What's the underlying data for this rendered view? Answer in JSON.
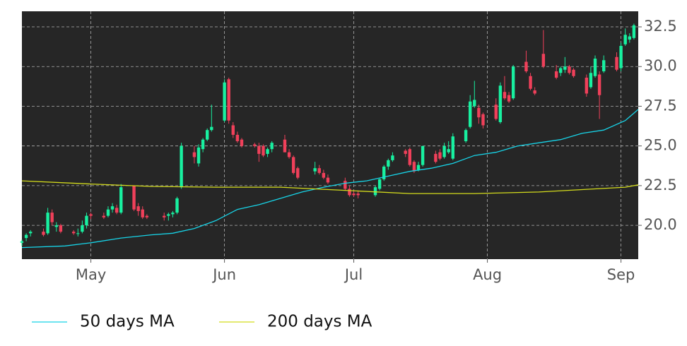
{
  "chart_data": {
    "type": "candlestick",
    "up_color": "#18f0a0",
    "down_color": "#f0405a",
    "grid": true,
    "xlim": [
      105,
      248
    ],
    "ylim": [
      17.87,
      33.48
    ],
    "xticks": [
      {
        "value": 121,
        "label": "May"
      },
      {
        "value": 152,
        "label": "Jun"
      },
      {
        "value": 182,
        "label": "Jul"
      },
      {
        "value": 213,
        "label": "Aug"
      },
      {
        "value": 244,
        "label": "Sep"
      }
    ],
    "yticks": [
      {
        "value": 20,
        "label": "20.0"
      },
      {
        "value": 22.5,
        "label": "22.5"
      },
      {
        "value": 25,
        "label": "25.0"
      },
      {
        "value": 27.5,
        "label": "27.5"
      },
      {
        "value": 30,
        "label": "30.0"
      },
      {
        "value": 32.5,
        "label": "32.5"
      }
    ],
    "x": [
      105,
      106,
      107,
      110,
      111,
      112,
      113,
      114,
      117,
      118,
      119,
      120,
      121,
      124,
      125,
      126,
      127,
      128,
      131,
      132,
      133,
      134,
      138,
      139,
      140,
      141,
      142,
      145,
      146,
      147,
      148,
      149,
      152,
      153,
      154,
      155,
      156,
      159,
      160,
      161,
      162,
      163,
      166,
      167,
      168,
      169,
      173,
      174,
      175,
      176,
      180,
      181,
      182,
      183,
      187,
      188,
      189,
      190,
      191,
      194,
      195,
      196,
      197,
      198,
      201,
      202,
      203,
      204,
      205,
      208,
      209,
      210,
      211,
      212,
      215,
      216,
      217,
      218,
      219,
      222,
      223,
      224,
      226,
      229,
      230,
      231,
      232,
      233,
      236,
      237,
      238,
      239,
      240,
      243,
      244,
      245,
      246,
      247
    ],
    "open": [
      18.9,
      19.2,
      19.5,
      19.6,
      19.5,
      20.8,
      19.9,
      20.0,
      19.6,
      19.5,
      19.6,
      20.0,
      20.7,
      20.6,
      20.6,
      21.0,
      21.1,
      20.8,
      22.5,
      21.2,
      21.0,
      20.6,
      20.6,
      20.6,
      20.7,
      20.8,
      22.4,
      24.6,
      23.9,
      24.8,
      25.4,
      26.0,
      26.6,
      29.2,
      26.3,
      25.7,
      25.4,
      25.1,
      25.0,
      25.0,
      24.5,
      24.8,
      25.4,
      24.6,
      24.3,
      23.6,
      23.4,
      23.6,
      23.3,
      23.0,
      22.8,
      22.3,
      22.0,
      22.0,
      21.9,
      22.3,
      22.9,
      23.7,
      24.1,
      24.7,
      24.8,
      24.0,
      23.5,
      23.8,
      24.5,
      24.6,
      24.3,
      24.6,
      24.2,
      25.3,
      26.2,
      27.5,
      27.4,
      27.0,
      27.6,
      26.5,
      28.4,
      28.2,
      28.0,
      30.3,
      29.4,
      28.5,
      30.8,
      29.7,
      29.6,
      29.8,
      30.0,
      29.8,
      29.3,
      28.7,
      29.4,
      29.5,
      29.7,
      30.6,
      29.9,
      31.4,
      31.7,
      31.8
    ],
    "high": [
      19.1,
      19.5,
      19.7,
      19.8,
      21.1,
      21.0,
      20.2,
      20.1,
      19.7,
      19.8,
      20.3,
      20.8,
      20.8,
      20.8,
      21.2,
      21.4,
      21.3,
      22.6,
      22.5,
      21.4,
      21.2,
      20.7,
      20.8,
      20.8,
      20.9,
      21.8,
      25.2,
      25.0,
      25.1,
      25.5,
      26.1,
      27.6,
      29.2,
      29.3,
      26.5,
      25.9,
      25.5,
      25.2,
      25.2,
      25.1,
      24.9,
      25.3,
      25.7,
      24.8,
      24.4,
      23.7,
      24.0,
      23.8,
      23.5,
      23.2,
      23.0,
      22.5,
      22.2,
      22.2,
      22.5,
      23.0,
      23.8,
      24.2,
      24.6,
      24.8,
      24.9,
      24.1,
      24.0,
      25.0,
      24.7,
      24.8,
      25.2,
      25.3,
      25.8,
      26.1,
      28.2,
      29.1,
      27.6,
      27.1,
      28.0,
      29.0,
      29.4,
      28.4,
      30.1,
      31.0,
      29.6,
      28.7,
      32.3,
      30.1,
      30.0,
      30.6,
      30.1,
      29.9,
      29.5,
      30.0,
      30.7,
      29.7,
      30.7,
      30.9,
      31.5,
      32.4,
      32.1,
      32.7
    ],
    "low": [
      18.7,
      19.0,
      19.3,
      19.3,
      19.4,
      20.0,
      19.6,
      19.5,
      19.4,
      19.3,
      19.5,
      19.8,
      20.4,
      20.4,
      20.5,
      20.8,
      20.7,
      20.7,
      20.9,
      20.6,
      20.4,
      20.4,
      20.3,
      20.3,
      20.5,
      20.7,
      22.3,
      23.9,
      23.7,
      24.6,
      25.3,
      25.9,
      26.5,
      26.4,
      25.5,
      25.2,
      24.9,
      24.9,
      24.0,
      24.3,
      24.3,
      24.6,
      24.6,
      24.2,
      23.2,
      22.9,
      23.2,
      23.2,
      22.9,
      22.6,
      22.2,
      21.8,
      21.8,
      21.7,
      21.8,
      22.2,
      22.8,
      23.5,
      24.0,
      24.3,
      23.7,
      23.3,
      23.4,
      23.7,
      23.9,
      24.1,
      24.2,
      24.5,
      24.1,
      25.2,
      26.1,
      27.4,
      26.4,
      26.1,
      26.6,
      26.4,
      27.9,
      27.7,
      27.9,
      29.6,
      28.5,
      28.2,
      29.9,
      29.2,
      29.4,
      29.6,
      29.5,
      29.3,
      28.1,
      28.6,
      29.3,
      26.7,
      29.6,
      29.7,
      29.7,
      31.3,
      31.5,
      31.7
    ],
    "close": [
      19.0,
      19.4,
      19.6,
      19.4,
      20.8,
      20.2,
      20.0,
      19.6,
      19.5,
      19.5,
      20.0,
      20.6,
      20.6,
      20.5,
      21.0,
      21.2,
      20.8,
      22.4,
      21.0,
      20.9,
      20.5,
      20.5,
      20.5,
      20.7,
      20.8,
      21.7,
      25.0,
      24.3,
      24.9,
      25.4,
      26.0,
      26.2,
      29.0,
      26.6,
      25.7,
      25.3,
      25.0,
      25.0,
      24.5,
      24.4,
      24.8,
      25.2,
      24.6,
      24.3,
      23.3,
      23.0,
      23.6,
      23.3,
      23.0,
      22.7,
      22.3,
      21.9,
      21.9,
      21.9,
      22.4,
      22.9,
      23.7,
      24.1,
      24.4,
      24.5,
      23.8,
      23.4,
      23.8,
      25.0,
      24.0,
      24.2,
      25.0,
      24.8,
      25.6,
      26.0,
      27.8,
      27.9,
      26.8,
      26.3,
      26.7,
      28.8,
      28.0,
      27.8,
      30.0,
      29.7,
      28.6,
      28.3,
      30.0,
      29.3,
      29.9,
      30.0,
      29.6,
      29.4,
      28.3,
      29.6,
      30.5,
      28.2,
      30.4,
      29.8,
      31.3,
      32.0,
      31.9,
      32.6
    ],
    "series": [
      {
        "name": "50 days MA",
        "color": "#17d4e8",
        "x": [
          105,
          115,
          121,
          128,
          135,
          140,
          145,
          150,
          155,
          160,
          165,
          170,
          175,
          180,
          185,
          190,
          195,
          200,
          205,
          210,
          215,
          220,
          225,
          230,
          235,
          240,
          245,
          248
        ],
        "values": [
          18.6,
          18.7,
          18.9,
          19.2,
          19.4,
          19.5,
          19.8,
          20.3,
          21.0,
          21.3,
          21.7,
          22.1,
          22.4,
          22.65,
          22.8,
          23.1,
          23.4,
          23.6,
          23.9,
          24.4,
          24.6,
          25.0,
          25.2,
          25.4,
          25.8,
          26.0,
          26.6,
          27.3
        ]
      },
      {
        "name": "200 days MA",
        "color": "#d4dc1c",
        "x": [
          105,
          121,
          135,
          150,
          165,
          180,
          195,
          210,
          225,
          235,
          245,
          248
        ],
        "values": [
          22.8,
          22.6,
          22.45,
          22.4,
          22.4,
          22.2,
          22.0,
          22.0,
          22.1,
          22.25,
          22.4,
          22.55
        ]
      }
    ]
  }
}
